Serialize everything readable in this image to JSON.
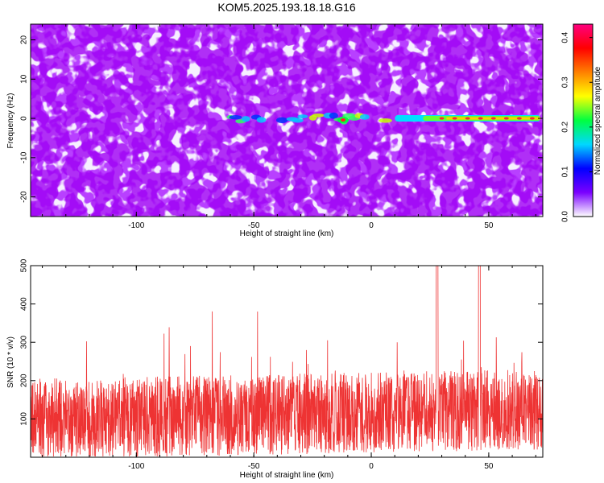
{
  "title": "KOM5.2025.193.18.18.G16",
  "chart_data": [
    {
      "type": "heatmap",
      "xlabel": "Height of straight line (km)",
      "ylabel": "Frequency (Hz)",
      "xlim": [
        -145,
        73
      ],
      "ylim": [
        -25,
        24
      ],
      "xticks": [
        -100,
        -50,
        0,
        50
      ],
      "yticks": [
        -20,
        -10,
        0,
        10,
        20
      ],
      "colorbar": {
        "label": "Normalized spectral amplitude",
        "range": [
          0.0,
          0.43
        ],
        "ticks": [
          0.0,
          0.1,
          0.2,
          0.3,
          0.4
        ],
        "colors": [
          "#ffffff",
          "#7a00ff",
          "#0000ff",
          "#00d8ff",
          "#00ff40",
          "#ffff00",
          "#ff8000",
          "#ff0000",
          "#ff0080"
        ]
      },
      "ridge": {
        "frequency_hz": 0,
        "strong_from_km": 10,
        "strong_to_km": 72,
        "peak_amplitude": 0.43
      },
      "grid": false
    },
    {
      "type": "line",
      "xlabel": "Height of straight line (km)",
      "ylabel": "SNR (10 * v/v)",
      "xlim": [
        -145,
        73
      ],
      "ylim": [
        0,
        500
      ],
      "xticks": [
        -100,
        -50,
        0,
        50
      ],
      "yticks": [
        100,
        200,
        300,
        400,
        500
      ],
      "series": [
        {
          "color": "#ee3333",
          "baseline": 100,
          "typical_peak": 260,
          "max": 500
        }
      ],
      "grid": false
    }
  ]
}
